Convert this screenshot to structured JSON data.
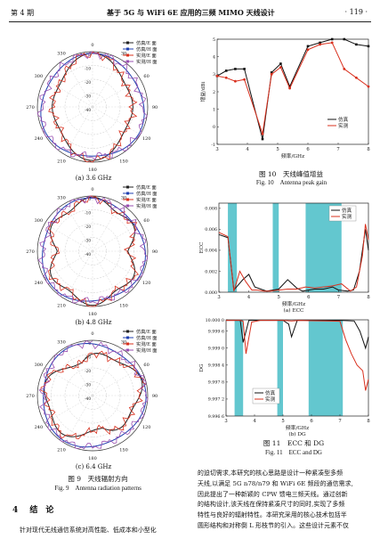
{
  "header": {
    "issue": "第 4 期",
    "title": "基于 5G 与 WiFi 6E 应用的三频 MIMO 天线设计",
    "page": "· 119 ·"
  },
  "polar_legend": [
    "仿真/E 面",
    "仿真/H 面",
    "实测/E 面",
    "实测/H 面"
  ],
  "polar_angles": [
    "0",
    "30",
    "60",
    "90",
    "120",
    "150",
    "180",
    "210",
    "240",
    "270",
    "300",
    "330"
  ],
  "polar_scale": [
    "0",
    "-10",
    "-20",
    "-30",
    "-40"
  ],
  "polar_captions": [
    "(a) 3.6 GHz",
    "(b) 4.8 GHz",
    "(c) 6.4 GHz"
  ],
  "fig9": {
    "cn": "图 9　天线辐射方向",
    "en": "Fig. 9　Antenna radiation patterns"
  },
  "fig10": {
    "cn": "图 10　天线峰值增益",
    "en": "Fig. 10　Antenna peak gain"
  },
  "fig11": {
    "cn": "图 11　ECC 和 DG",
    "en": "Fig. 11　ECC and DG",
    "sub_a": "(a) ECC",
    "sub_b": "(b) DG"
  },
  "legend_sim": "仿真",
  "legend_meas": "实测",
  "xlabel": "频率/GHz",
  "gain_ylabel": "增益/dBi",
  "ecc_ylabel": "ECC",
  "dg_ylabel": "DG",
  "x_ticks": [
    "3",
    "4",
    "5",
    "6",
    "7",
    "8"
  ],
  "gain_ticks": [
    "-1",
    "0",
    "1",
    "2",
    "3",
    "4",
    "5"
  ],
  "ecc_ticks": [
    "0.000",
    "0.002",
    "0.004",
    "0.006",
    "0.008"
  ],
  "dg_ticks": [
    "9.996 6",
    "9.997 2",
    "9.997 8",
    "9.998 4",
    "9.999 0",
    "9.999 6",
    "10.000 0"
  ],
  "section": {
    "num": "4",
    "title": "结　论"
  },
  "left_para": "针对现代无线通信系统对高性能、低成本和小型化",
  "right_para": [
    "的迫切需求,本研究的核心思路是设计一种紧凑型多频",
    "天线,以满足 5G n78/n79 和 WiFi 6E 频段的通信需求,",
    "因此提出了一种新颖的 CPW 馈电三频天线。通过创新",
    "的结构设计,该天线在保持紧凑尺寸的同时,实现了多频",
    "特性与良好的辐射特性。本研究采用的核心技术包括半",
    "圆形结构和对称倒 L 形枝节的引入。这些设计元素不仅"
  ],
  "colors": {
    "sim": "#111111",
    "meas": "#d9301e",
    "band": "#63c7cf",
    "pe": "#222222",
    "ph": "#1f3fb0",
    "me": "#d9301e",
    "mh": "#9a4fb0"
  },
  "chart_data": [
    {
      "type": "line",
      "title": "图 10 天线峰值增益",
      "xlabel": "频率/GHz",
      "ylabel": "增益/dBi",
      "xlim": [
        3,
        8
      ],
      "ylim": [
        -1,
        5
      ],
      "series": [
        {
          "name": "仿真",
          "x": [
            3.0,
            3.3,
            3.6,
            3.9,
            4.5,
            4.8,
            5.1,
            5.4,
            6.0,
            6.4,
            6.8,
            7.2,
            7.6,
            8.0
          ],
          "y": [
            2.9,
            3.2,
            3.3,
            3.3,
            -0.7,
            3.1,
            3.6,
            2.3,
            4.6,
            4.8,
            5.0,
            5.0,
            4.7,
            4.6
          ]
        },
        {
          "name": "实测",
          "x": [
            3.0,
            3.3,
            3.6,
            3.9,
            4.5,
            4.8,
            5.1,
            5.4,
            6.0,
            6.4,
            6.8,
            7.2,
            7.6,
            8.0
          ],
          "y": [
            2.9,
            2.8,
            2.6,
            2.7,
            -0.4,
            3.0,
            3.4,
            2.2,
            4.4,
            4.7,
            4.8,
            3.3,
            2.8,
            2.3
          ]
        }
      ]
    },
    {
      "type": "line",
      "title": "(a) ECC",
      "xlabel": "频率/GHz",
      "ylabel": "ECC",
      "xlim": [
        3,
        8
      ],
      "ylim": [
        0,
        0.0085
      ],
      "series": [
        {
          "name": "仿真",
          "x": [
            3.0,
            3.3,
            3.5,
            3.8,
            4.0,
            4.2,
            4.4,
            4.6,
            4.8,
            5.0,
            5.3,
            5.6,
            5.8,
            6.0,
            6.2,
            6.5,
            6.8,
            7.0,
            7.3,
            7.5,
            7.7,
            7.9,
            8.0
          ],
          "y": [
            0.0055,
            0.0052,
            0.0002,
            0.0012,
            0.0017,
            0.0005,
            0.0003,
            0.0001,
            0.0002,
            0.0003,
            0.0012,
            0.0004,
            0.0001,
            0.0002,
            0.0003,
            0.0003,
            0.0005,
            0.0002,
            0.0001,
            0.0002,
            0.002,
            0.006,
            0.004
          ]
        },
        {
          "name": "实测",
          "x": [
            3.0,
            3.3,
            3.5,
            3.7,
            3.9,
            4.1,
            4.3,
            4.5,
            4.7,
            5.0,
            5.3,
            5.6,
            5.9,
            6.2,
            6.5,
            6.8,
            7.1,
            7.4,
            7.6,
            7.8,
            7.9,
            8.0
          ],
          "y": [
            0.0057,
            0.0053,
            0.0001,
            0.002,
            0.001,
            0.0002,
            0.0002,
            0.0001,
            0.0001,
            0.0002,
            0.0003,
            0.0003,
            0.0005,
            0.0004,
            0.0005,
            0.0006,
            0.0008,
            0.0001,
            0.0005,
            0.0035,
            0.0065,
            0.005
          ]
        }
      ]
    },
    {
      "type": "line",
      "title": "(b) DG",
      "xlabel": "频率/GHz",
      "ylabel": "DG",
      "xlim": [
        3,
        8
      ],
      "ylim": [
        9.9966,
        10.0
      ],
      "series": [
        {
          "name": "仿真",
          "x": [
            3.0,
            3.3,
            3.5,
            3.6,
            3.8,
            4.0,
            4.5,
            5.0,
            5.2,
            5.3,
            5.5,
            6.0,
            6.5,
            7.0,
            7.5,
            7.7,
            7.9,
            8.0
          ],
          "y": [
            9.99998,
            9.99998,
            9.99998,
            9.9992,
            9.99998,
            9.99998,
            9.99998,
            9.99998,
            9.99985,
            9.9994,
            9.99998,
            9.99998,
            9.99998,
            9.99998,
            9.99996,
            9.9996,
            9.999,
            9.9994
          ]
        },
        {
          "name": "实测",
          "x": [
            3.0,
            3.3,
            3.5,
            3.6,
            3.7,
            3.9,
            4.2,
            4.6,
            5.0,
            5.3,
            5.6,
            6.0,
            6.5,
            7.0,
            7.2,
            7.4,
            7.6,
            7.8,
            7.9,
            8.0
          ],
          "y": [
            9.99998,
            9.99998,
            9.99998,
            9.99995,
            9.9988,
            9.99992,
            9.99998,
            9.99998,
            9.99998,
            9.99996,
            9.99998,
            9.99997,
            9.99996,
            9.99995,
            9.9993,
            9.9988,
            9.9984,
            9.9982,
            9.9975,
            9.9979
          ]
        }
      ]
    }
  ]
}
